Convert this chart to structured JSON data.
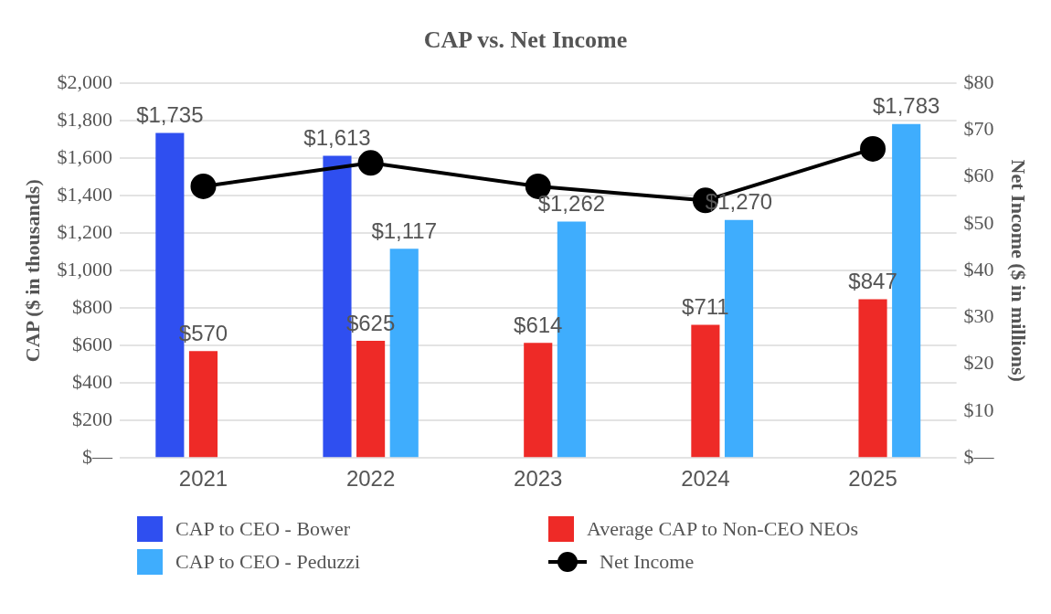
{
  "chart_data": {
    "type": "bar",
    "title": "CAP vs. Net Income",
    "ylabel": "CAP ($ in thousands)",
    "y2label": "Net Income ($ in millions)",
    "categories": [
      "2021",
      "2022",
      "2023",
      "2024",
      "2025"
    ],
    "series": [
      {
        "name": "CAP to CEO - Bower",
        "color": "#2f4ff0",
        "values": [
          1735,
          1613,
          null,
          null,
          null
        ],
        "value_labels": [
          "$1,735",
          "$1,613",
          null,
          null,
          null
        ]
      },
      {
        "name": "Average CAP to Non-CEO NEOs",
        "color": "#ee2a27",
        "values": [
          570,
          625,
          614,
          711,
          847
        ],
        "value_labels": [
          "$570",
          "$625",
          "$614",
          "$711",
          "$847"
        ]
      },
      {
        "name": "CAP to CEO - Peduzzi",
        "color": "#3fadfd",
        "values": [
          null,
          1117,
          1262,
          1270,
          1783
        ],
        "value_labels": [
          null,
          "$1,117",
          "$1,262",
          "$1,270",
          "$1,783"
        ]
      },
      {
        "name": "Net Income",
        "type": "line",
        "axis": "y2",
        "color": "#000000",
        "values": [
          58,
          63,
          58,
          55,
          66
        ]
      }
    ],
    "ylim": [
      0,
      2000
    ],
    "yticks": [
      {
        "value": 0,
        "label": "$—"
      },
      {
        "value": 200,
        "label": "$200"
      },
      {
        "value": 400,
        "label": "$400"
      },
      {
        "value": 600,
        "label": "$600"
      },
      {
        "value": 800,
        "label": "$800"
      },
      {
        "value": 1000,
        "label": "$1,000"
      },
      {
        "value": 1200,
        "label": "$1,200"
      },
      {
        "value": 1400,
        "label": "$1,400"
      },
      {
        "value": 1600,
        "label": "$1,600"
      },
      {
        "value": 1800,
        "label": "$1,800"
      },
      {
        "value": 2000,
        "label": "$2,000"
      }
    ],
    "y2lim": [
      0,
      80
    ],
    "y2ticks": [
      {
        "value": 0,
        "label": "$—"
      },
      {
        "value": 10,
        "label": "$10"
      },
      {
        "value": 20,
        "label": "$20"
      },
      {
        "value": 30,
        "label": "$30"
      },
      {
        "value": 40,
        "label": "$40"
      },
      {
        "value": 50,
        "label": "$50"
      },
      {
        "value": 60,
        "label": "$60"
      },
      {
        "value": 70,
        "label": "$70"
      },
      {
        "value": 80,
        "label": "$80"
      }
    ],
    "grid": "y",
    "legend": "bottom",
    "marker": "circle",
    "line_style": "solid"
  }
}
